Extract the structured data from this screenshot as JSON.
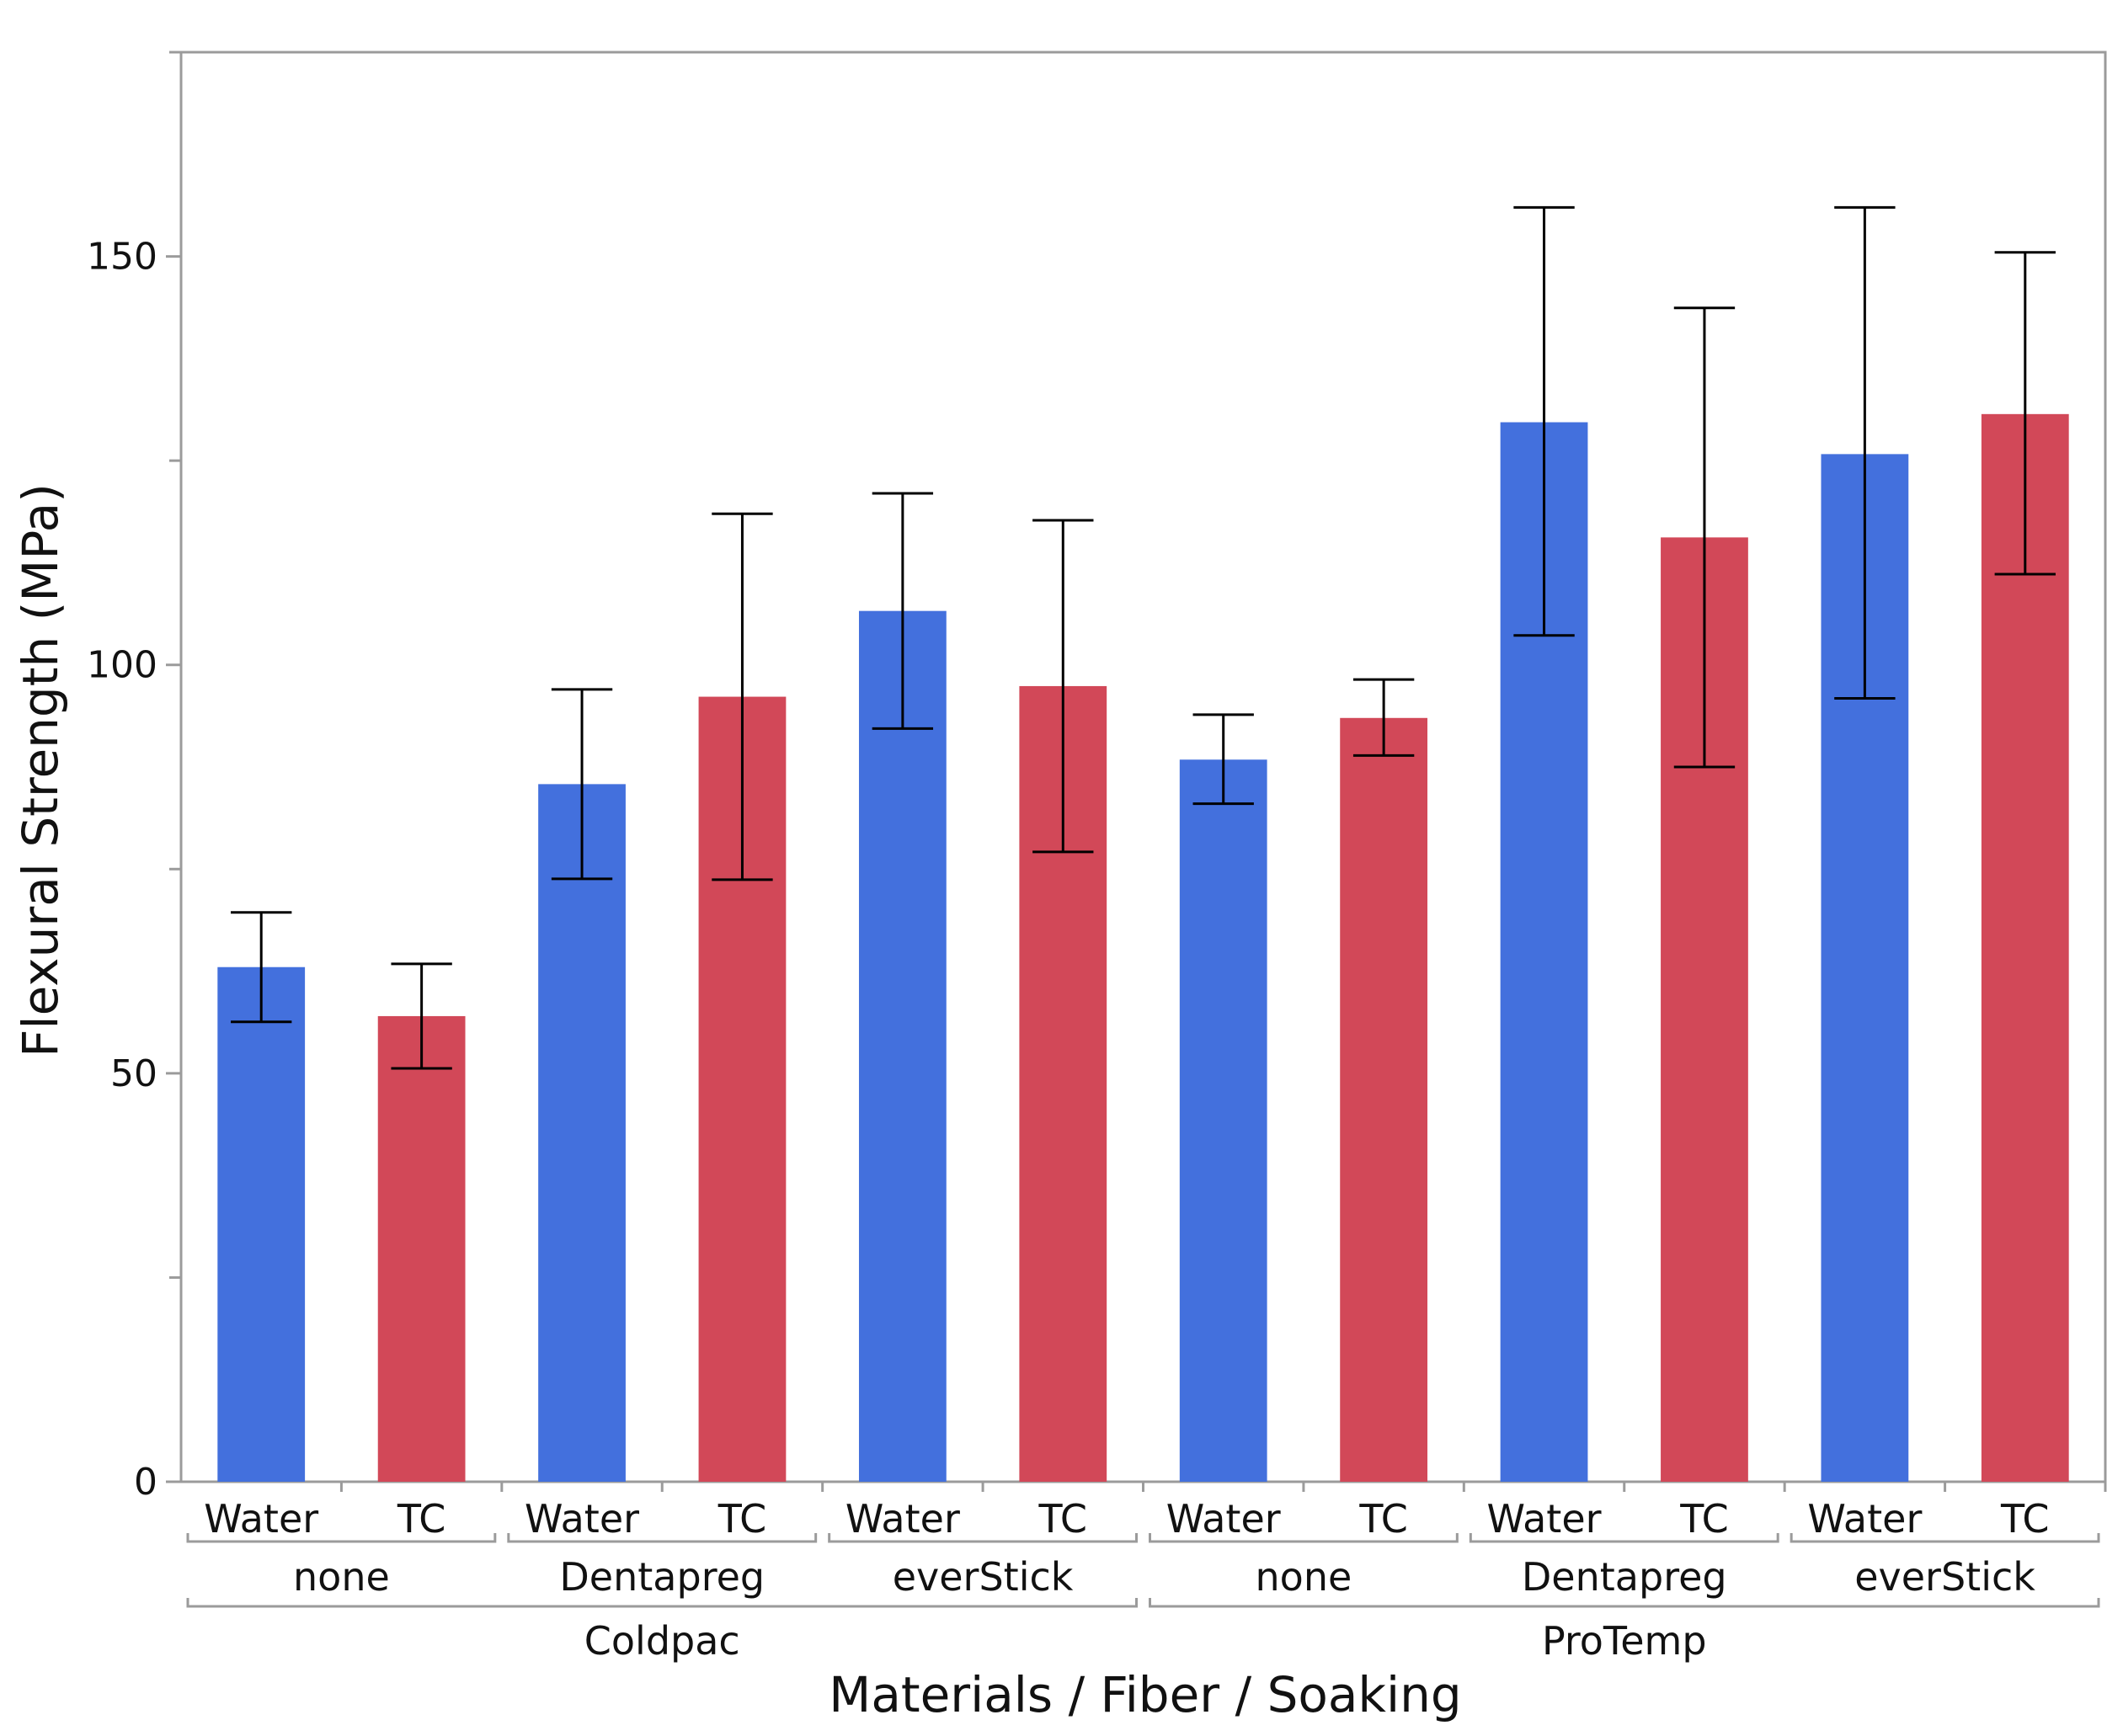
{
  "chart_data": {
    "type": "bar",
    "title": "",
    "xlabel": "Materials / Fiber / Soaking",
    "ylabel": "Flexural Strength (MPa)",
    "ylim": [
      0,
      175
    ],
    "yticks": [
      0,
      50,
      100,
      150
    ],
    "grid": false,
    "legend": "none",
    "colors": {
      "Water": "#4370DD",
      "TC": "#D24858",
      "axis": "#9b9b9b",
      "error_bar": "#000000"
    },
    "groups": [
      {
        "material": "Coldpac",
        "fibers": [
          {
            "fiber": "none",
            "bars": [
              {
                "soaking": "Water",
                "value": 63,
                "err_low": 56.3,
                "err_high": 69.7
              },
              {
                "soaking": "TC",
                "value": 57,
                "err_low": 50.6,
                "err_high": 63.4
              }
            ]
          },
          {
            "fiber": "Dentapreg",
            "bars": [
              {
                "soaking": "Water",
                "value": 85.4,
                "err_low": 73.8,
                "err_high": 97
              },
              {
                "soaking": "TC",
                "value": 96.1,
                "err_low": 73.7,
                "err_high": 118.5
              }
            ]
          },
          {
            "fiber": "everStick",
            "bars": [
              {
                "soaking": "Water",
                "value": 106.6,
                "err_low": 92.2,
                "err_high": 121
              },
              {
                "soaking": "TC",
                "value": 97.4,
                "err_low": 77.1,
                "err_high": 117.7
              }
            ]
          }
        ]
      },
      {
        "material": "ProTemp",
        "fibers": [
          {
            "fiber": "none",
            "bars": [
              {
                "soaking": "Water",
                "value": 88.4,
                "err_low": 83,
                "err_high": 93.9
              },
              {
                "soaking": "TC",
                "value": 93.5,
                "err_low": 88.9,
                "err_high": 98.2
              }
            ]
          },
          {
            "fiber": "Dentapreg",
            "bars": [
              {
                "soaking": "Water",
                "value": 129.7,
                "err_low": 103.6,
                "err_high": 156
              },
              {
                "soaking": "TC",
                "value": 115.6,
                "err_low": 87.5,
                "err_high": 143.7
              }
            ]
          },
          {
            "fiber": "everStick",
            "bars": [
              {
                "soaking": "Water",
                "value": 125.8,
                "err_low": 95.9,
                "err_high": 156
              },
              {
                "soaking": "TC",
                "value": 130.7,
                "err_low": 111.1,
                "err_high": 150.5
              }
            ]
          }
        ]
      }
    ]
  }
}
